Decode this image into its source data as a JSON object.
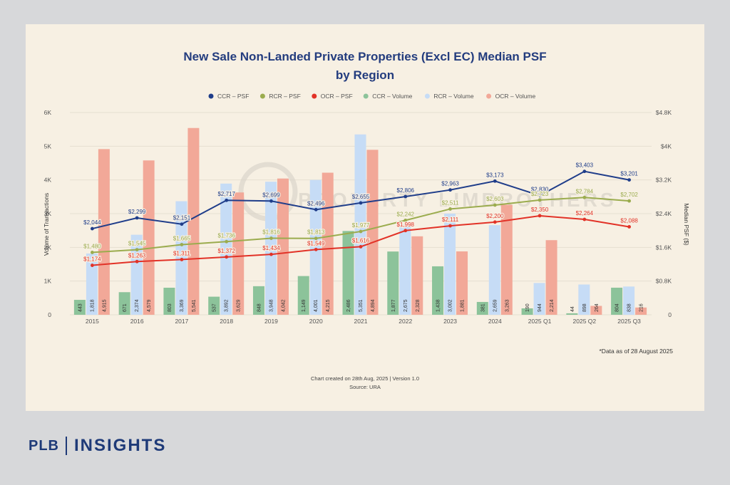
{
  "brand": {
    "prefix": "PLB",
    "name": "INSIGHTS"
  },
  "chart_data": {
    "type": "bar+line",
    "title_line1": "New Sale Non-Landed Private Properties (Excl EC) Median PSF",
    "title_line2": "by Region",
    "categories": [
      "2015",
      "2016",
      "2017",
      "2018",
      "2019",
      "2020",
      "2021",
      "2022",
      "2023",
      "2024",
      "2025 Q1",
      "2025 Q2",
      "2025 Q3"
    ],
    "bar_series": [
      {
        "name": "CCR – Volume",
        "color": "#8cc39a",
        "values": [
          443,
          671,
          803,
          537,
          848,
          1149,
          2486,
          1877,
          1438,
          381,
          190,
          44,
          804
        ]
      },
      {
        "name": "RCR – Volume",
        "color": "#c6dcf6",
        "values": [
          1818,
          2374,
          3369,
          3892,
          3948,
          4001,
          5351,
          2675,
          3002,
          2659,
          944,
          898,
          838
        ]
      },
      {
        "name": "OCR – Volume",
        "color": "#f2a898",
        "values": [
          4915,
          4579,
          5541,
          3629,
          4042,
          4215,
          4894,
          2328,
          1881,
          3263,
          2214,
          264,
          216
        ]
      }
    ],
    "line_series": [
      {
        "name": "CCR – PSF",
        "color": "#1f3d8a",
        "values": [
          2044,
          2299,
          2151,
          2717,
          2699,
          2496,
          2655,
          2806,
          2963,
          3173,
          2830,
          3403,
          3201
        ]
      },
      {
        "name": "RCR – PSF",
        "color": "#9bac4e",
        "values": [
          1480,
          1545,
          1665,
          1736,
          1816,
          1813,
          1977,
          2242,
          2511,
          2603,
          2723,
          2784,
          2702
        ]
      },
      {
        "name": "OCR – PSF",
        "color": "#e23227",
        "values": [
          1174,
          1263,
          1311,
          1372,
          1434,
          1549,
          1616,
          1998,
          2111,
          2200,
          2350,
          2264,
          2088
        ]
      }
    ],
    "legend_order": [
      "CCR – PSF",
      "RCR – PSF",
      "OCR – PSF",
      "CCR – Volume",
      "RCR – Volume",
      "OCR – Volume"
    ],
    "y_left": {
      "label": "Volume of Transactions",
      "ticks": [
        0,
        1000,
        2000,
        3000,
        4000,
        5000,
        6000
      ],
      "tick_labels": [
        "0",
        "1K",
        "2K",
        "3K",
        "4K",
        "5K",
        "6K"
      ],
      "range": [
        0,
        6000
      ]
    },
    "y_right": {
      "label": "Median PSF ($)",
      "ticks": [
        0,
        800,
        1600,
        2400,
        3200,
        4000,
        4800
      ],
      "tick_labels": [
        "0",
        "$0.8K",
        "$1.6K",
        "$2.4K",
        "$3.2K",
        "$4K",
        "$4.8K"
      ],
      "range": [
        0,
        4800
      ]
    },
    "watermark": "PROPERTY LIMBROTHERS",
    "note": "*Data as of 28 August 2025",
    "footer_line1": "Chart created on 28th Aug, 2025 | Version 1.0",
    "footer_line2": "Source: URA"
  }
}
